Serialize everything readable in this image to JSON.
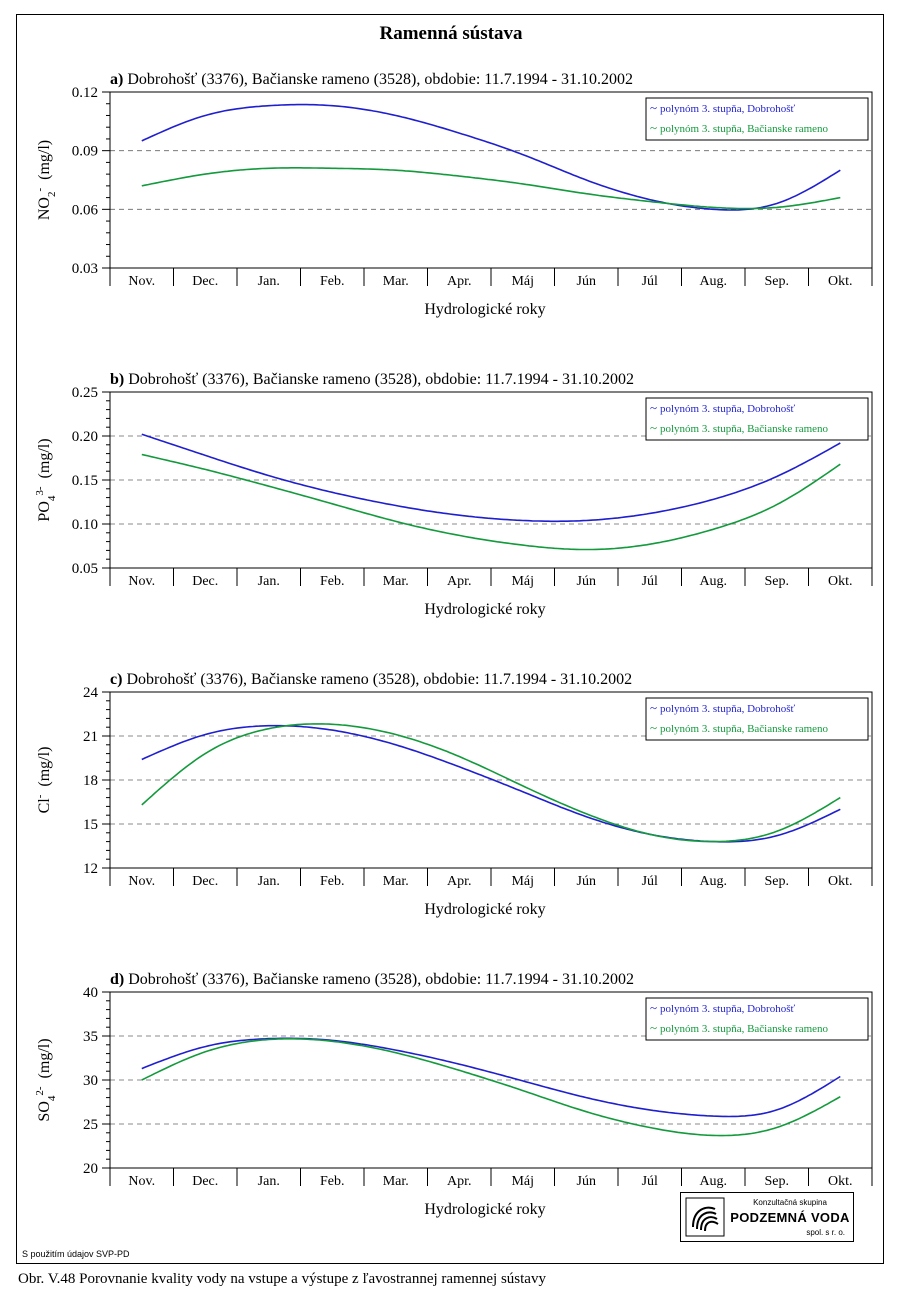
{
  "title": "Ramenná sústava",
  "caption": "Obr. V.48 Porovnanie kvality vody na vstupe a výstupe z ľavostrannej ramennej sústavy",
  "source_note": "S použitím údajov SVP-PD",
  "logo": {
    "top": "Konzultačná skupina",
    "name": "PODZEMNÁ VODA",
    "sub": "spol. s r. o."
  },
  "colors": {
    "series1": "#1f1fd0",
    "series2": "#139a3c",
    "grid": "#666666"
  },
  "chart_data": [
    {
      "type": "line",
      "title": "a) Dobrohošť (3376), Bačianske rameno (3528), obdobie: 11.7.1994 - 31.10.2002",
      "ylabel_main": "NO",
      "ylabel_sub": "2",
      "ylabel_sup": "-",
      "ylabel_unit": "(mg/l)",
      "xlabel": "Hydrologické roky",
      "categories": [
        "Nov.",
        "Dec.",
        "Jan.",
        "Feb.",
        "Mar.",
        "Apr.",
        "Máj",
        "Jún",
        "Júl",
        "Aug.",
        "Sep.",
        "Okt."
      ],
      "ylim": [
        0.03,
        0.12
      ],
      "yticks": [
        "0.03",
        "0.06",
        "0.09",
        "0.12"
      ],
      "ytick_values": [
        0.03,
        0.06,
        0.09,
        0.12
      ],
      "legend_position": "top-right",
      "series": [
        {
          "name": "polynóm 3. stupňa, Dobrohošť",
          "color": "#1f1fd0",
          "values": [
            0.095,
            0.108,
            0.113,
            0.113,
            0.108,
            0.099,
            0.088,
            0.075,
            0.065,
            0.06,
            0.063,
            0.08
          ]
        },
        {
          "name": "polynóm 3. stupňa, Bačianske rameno",
          "color": "#139a3c",
          "values": [
            0.072,
            0.078,
            0.081,
            0.081,
            0.08,
            0.077,
            0.073,
            0.068,
            0.064,
            0.061,
            0.061,
            0.066
          ]
        }
      ]
    },
    {
      "type": "line",
      "title": "b) Dobrohošť (3376), Bačianske rameno (3528), obdobie: 11.7.1994 - 31.10.2002",
      "ylabel_main": "PO",
      "ylabel_sub": "4",
      "ylabel_sup": "3-",
      "ylabel_unit": "(mg/l)",
      "xlabel": "Hydrologické roky",
      "categories": [
        "Nov.",
        "Dec.",
        "Jan.",
        "Feb.",
        "Mar.",
        "Apr.",
        "Máj",
        "Jún",
        "Júl",
        "Aug.",
        "Sep.",
        "Okt."
      ],
      "ylim": [
        0.05,
        0.25
      ],
      "yticks": [
        "0.05",
        "0.10",
        "0.15",
        "0.20",
        "0.25"
      ],
      "ytick_values": [
        0.05,
        0.1,
        0.15,
        0.2,
        0.25
      ],
      "legend_position": "top-right",
      "series": [
        {
          "name": "polynóm 3. stupňa, Dobrohošť",
          "color": "#1f1fd0",
          "values": [
            0.202,
            0.178,
            0.155,
            0.136,
            0.121,
            0.11,
            0.104,
            0.104,
            0.112,
            0.128,
            0.154,
            0.192
          ]
        },
        {
          "name": "polynóm 3. stupňa, Bačianske rameno",
          "color": "#139a3c",
          "values": [
            0.179,
            0.162,
            0.143,
            0.123,
            0.103,
            0.087,
            0.076,
            0.071,
            0.077,
            0.094,
            0.122,
            0.168
          ]
        }
      ]
    },
    {
      "type": "line",
      "title": "c) Dobrohošť (3376), Bačianske rameno (3528), obdobie: 11.7.1994 - 31.10.2002",
      "ylabel_main": "Cl",
      "ylabel_sub": "",
      "ylabel_sup": "-",
      "ylabel_unit": "(mg/l)",
      "xlabel": "Hydrologické roky",
      "categories": [
        "Nov.",
        "Dec.",
        "Jan.",
        "Feb.",
        "Mar.",
        "Apr.",
        "Máj",
        "Jún",
        "Júl",
        "Aug.",
        "Sep.",
        "Okt."
      ],
      "ylim": [
        12,
        24
      ],
      "yticks": [
        "12",
        "15",
        "18",
        "21",
        "24"
      ],
      "ytick_values": [
        12,
        15,
        18,
        21,
        24
      ],
      "legend_position": "top-right",
      "series": [
        {
          "name": "polynóm 3. stupňa, Dobrohošť",
          "color": "#1f1fd0",
          "values": [
            19.4,
            21.1,
            21.7,
            21.4,
            20.4,
            18.9,
            17.2,
            15.5,
            14.3,
            13.8,
            14.2,
            16.0
          ]
        },
        {
          "name": "polynóm 3. stupňa, Bačianske rameno",
          "color": "#139a3c",
          "values": [
            16.3,
            19.8,
            21.5,
            21.8,
            21.1,
            19.6,
            17.6,
            15.7,
            14.3,
            13.8,
            14.5,
            16.8
          ]
        }
      ]
    },
    {
      "type": "line",
      "title": "d) Dobrohošť (3376), Bačianske rameno (3528), obdobie: 11.7.1994 - 31.10.2002",
      "ylabel_main": "SO",
      "ylabel_sub": "4",
      "ylabel_sup": "2-",
      "ylabel_unit": "(mg/l)",
      "xlabel": "Hydrologické roky",
      "categories": [
        "Nov.",
        "Dec.",
        "Jan.",
        "Feb.",
        "Mar.",
        "Apr.",
        "Máj",
        "Jún",
        "Júl",
        "Aug.",
        "Sep.",
        "Okt."
      ],
      "ylim": [
        20,
        40
      ],
      "yticks": [
        "20",
        "25",
        "30",
        "35",
        "40"
      ],
      "ytick_values": [
        20,
        25,
        30,
        35,
        40
      ],
      "legend_position": "top-right",
      "series": [
        {
          "name": "polynóm 3. stupňa, Dobrohošť",
          "color": "#1f1fd0",
          "values": [
            31.3,
            33.8,
            34.7,
            34.5,
            33.4,
            31.8,
            29.9,
            28.0,
            26.6,
            25.9,
            26.6,
            30.4
          ]
        },
        {
          "name": "polynóm 3. stupňa, Bačianske rameno",
          "color": "#139a3c",
          "values": [
            30.0,
            33.2,
            34.6,
            34.4,
            33.1,
            31.1,
            28.8,
            26.4,
            24.6,
            23.7,
            24.6,
            28.1
          ]
        }
      ]
    }
  ]
}
